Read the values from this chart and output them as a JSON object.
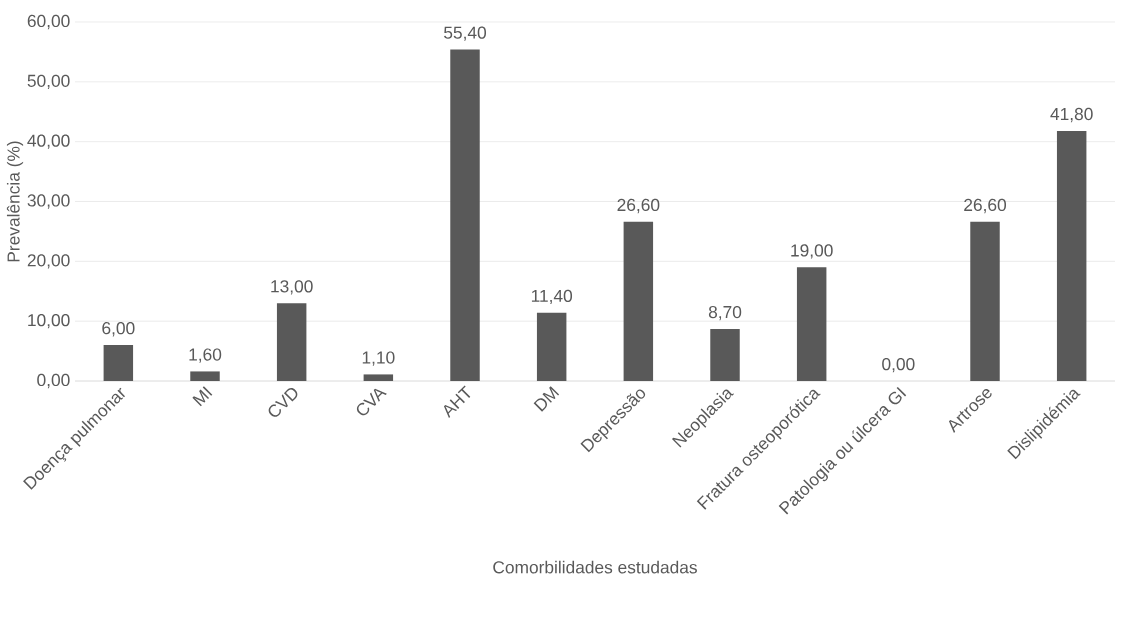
{
  "chart_data": {
    "type": "bar",
    "xlabel": "Comorbilidades estudadas",
    "ylabel": "Prevalência (%)",
    "categories": [
      "Doença pulmonar",
      "MI",
      "CVD",
      "CVA",
      "AHT",
      "DM",
      "Depressão",
      "Neoplasia",
      "Fratura osteoporótica",
      "Patologia ou úlcera GI",
      "Artrose",
      "Dislipidémia"
    ],
    "values": [
      6.0,
      1.6,
      13.0,
      1.1,
      55.4,
      11.4,
      26.6,
      8.7,
      19.0,
      0.0,
      26.6,
      41.8
    ],
    "value_labels": [
      "6,00",
      "1,60",
      "13,00",
      "1,10",
      "55,40",
      "11,40",
      "26,60",
      "8,70",
      "19,00",
      "0,00",
      "26,60",
      "41,80"
    ],
    "color": "#595959",
    "ylim": [
      0,
      60
    ],
    "yticks": [
      {
        "value": 0,
        "label": "0,00"
      },
      {
        "value": 10,
        "label": "10,00"
      },
      {
        "value": 20,
        "label": "20,00"
      },
      {
        "value": 30,
        "label": "30,00"
      },
      {
        "value": 40,
        "label": "40,00"
      },
      {
        "value": 50,
        "label": "50,00"
      },
      {
        "value": 60,
        "label": "60,00"
      }
    ],
    "grid": "y"
  }
}
